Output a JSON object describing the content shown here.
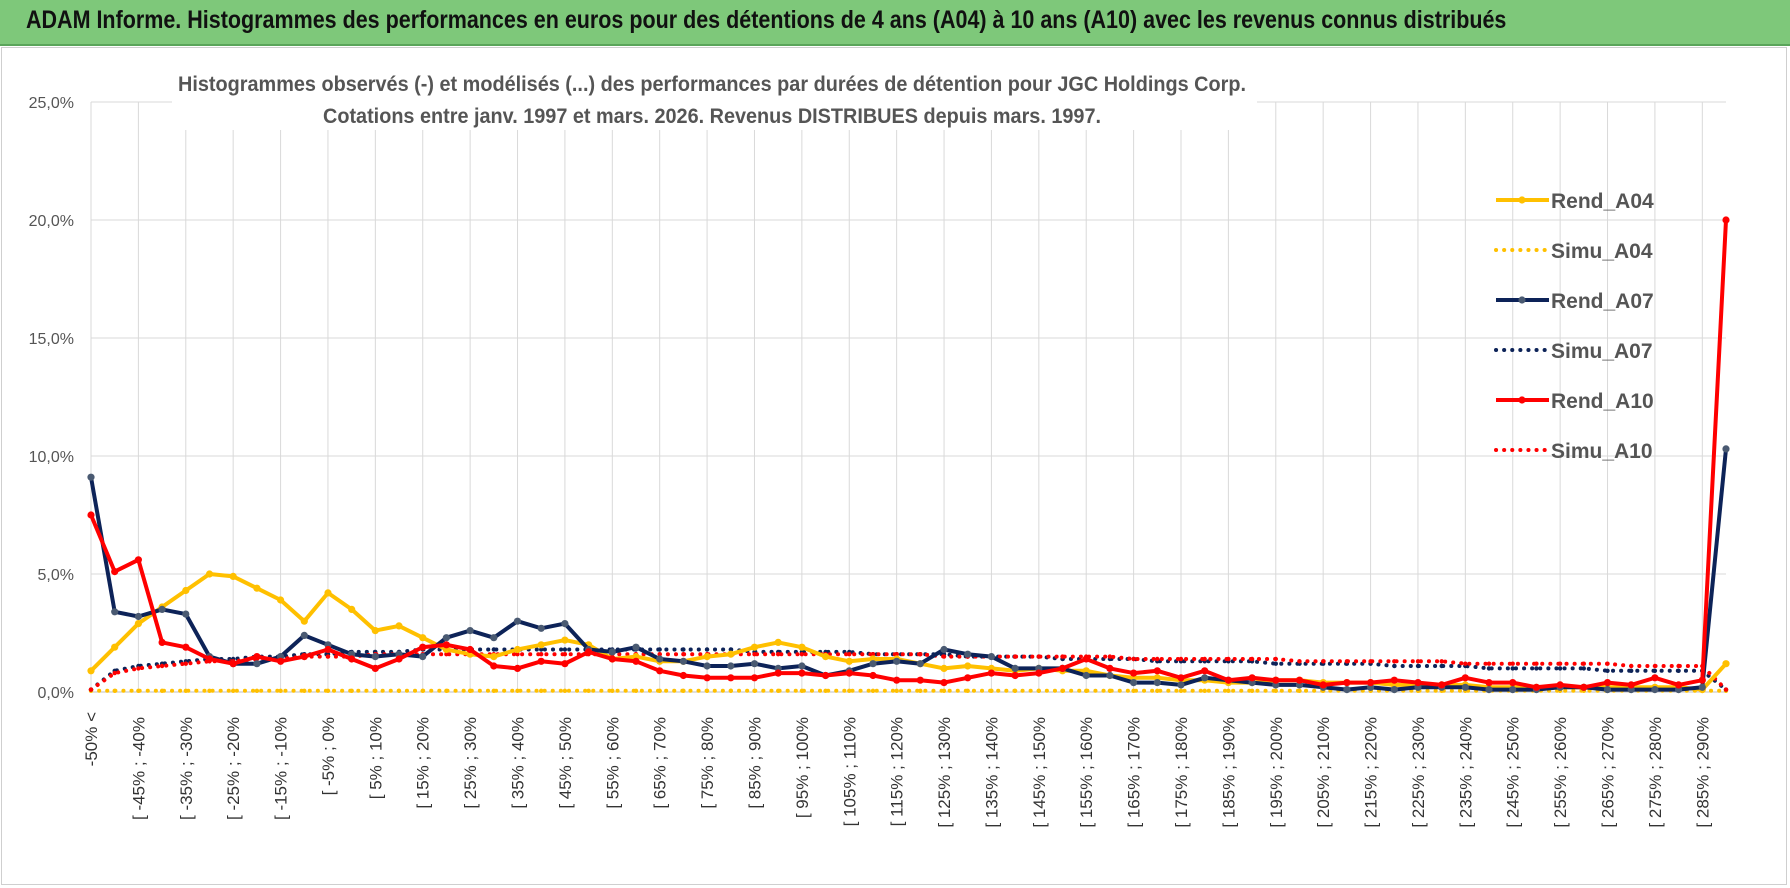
{
  "header": {
    "title": "ADAM Informe. Histogrammes des performances en euros pour des détentions de 4 ans (A04) à 10 ans (A10) avec les revenus connus distribués"
  },
  "colors": {
    "banner": "#7ec87a",
    "A04": "#ffc000",
    "A07": "#0d2358",
    "A10": "#ff0000",
    "grid": "#d9d9d9"
  },
  "chart_data": {
    "type": "line",
    "title_line1": "Histogrammes observés (-) et modélisés (...) des performances par durées de détention pour JGC Holdings Corp.",
    "title_line2": "Cotations entre janv. 1997 et mars. 2026.  Revenus DISTRIBUES depuis mars. 1997.",
    "ylim": [
      0,
      25
    ],
    "yticks": [
      "0,0%",
      "5,0%",
      "10,0%",
      "15,0%",
      "20,0%",
      "25,0%"
    ],
    "grid": true,
    "legend_position": "right",
    "x_label_list": [
      "-50% <",
      "[ -45% ; -40%",
      "[ -35% ; -30%",
      "[ -25% ; -20%",
      "[ -15% ; -10%",
      "[ -5% ; 0%",
      "[ 5% ; 10%",
      "[ 15% ; 20%",
      "[ 25% ; 30%",
      "[ 35% ; 40%",
      "[ 45% ; 50%",
      "[ 55% ; 60%",
      "[ 65% ; 70%",
      "[ 75% ; 80%",
      "[ 85% ; 90%",
      "[ 95% ; 100%",
      "[ 105% ; 110%",
      "[ 115% ; 120%",
      "[ 125% ; 130%",
      "[ 135% ; 140%",
      "[ 145% ; 150%",
      "[ 155% ; 160%",
      "[ 165% ; 170%",
      "[ 175% ; 180%",
      "[ 185% ; 190%",
      "[ 195% ; 200%",
      "[ 205% ; 210%",
      "[ 215% ; 220%",
      "[ 225% ; 230%",
      "[ 235% ; 240%",
      "[ 245% ; 250%",
      "[ 255% ; 260%",
      "[ 265% ; 270%",
      "[ 275% ; 280%",
      "[ 285% ; 290%"
    ],
    "n_categories": 70,
    "series": [
      {
        "name": "Rend_A04",
        "style": "solid",
        "color": "#ffc000",
        "values": [
          0.9,
          1.9,
          2.9,
          3.6,
          4.3,
          5.0,
          4.9,
          4.4,
          3.9,
          3.0,
          4.2,
          3.5,
          2.6,
          2.8,
          2.3,
          1.8,
          1.6,
          1.5,
          1.8,
          2.0,
          2.2,
          2.0,
          1.4,
          1.5,
          1.3,
          1.3,
          1.5,
          1.6,
          1.9,
          2.1,
          1.9,
          1.5,
          1.3,
          1.4,
          1.4,
          1.2,
          1.0,
          1.1,
          1.0,
          0.9,
          1.0,
          0.9,
          0.9,
          0.7,
          0.6,
          0.6,
          0.5,
          0.5,
          0.4,
          0.4,
          0.5,
          0.5,
          0.4,
          0.4,
          0.4,
          0.3,
          0.3,
          0.3,
          0.3,
          0.2,
          0.2,
          0.2,
          0.2,
          0.2,
          0.2,
          0.2,
          0.2,
          0.2,
          0.1,
          1.2
        ]
      },
      {
        "name": "Simu_A04",
        "style": "dotted",
        "color": "#ffc000",
        "values": [
          0.05,
          0.05,
          0.05,
          0.05,
          0.05,
          0.05,
          0.05,
          0.05,
          0.05,
          0.05,
          0.05,
          0.05,
          0.05,
          0.05,
          0.05,
          0.05,
          0.05,
          0.05,
          0.05,
          0.05,
          0.05,
          0.05,
          0.05,
          0.05,
          0.05,
          0.05,
          0.05,
          0.05,
          0.05,
          0.05,
          0.05,
          0.05,
          0.05,
          0.05,
          0.05,
          0.05,
          0.05,
          0.05,
          0.05,
          0.05,
          0.05,
          0.05,
          0.05,
          0.05,
          0.05,
          0.05,
          0.05,
          0.05,
          0.05,
          0.05,
          0.05,
          0.05,
          0.05,
          0.05,
          0.05,
          0.05,
          0.05,
          0.05,
          0.05,
          0.05,
          0.05,
          0.05,
          0.05,
          0.05,
          0.05,
          0.05,
          0.05,
          0.05,
          0.05,
          0.05
        ]
      },
      {
        "name": "Rend_A07",
        "style": "solid",
        "color": "#0d2358",
        "values": [
          9.1,
          3.4,
          3.2,
          3.5,
          3.3,
          1.5,
          1.2,
          1.2,
          1.5,
          2.4,
          2.0,
          1.6,
          1.5,
          1.6,
          1.5,
          2.3,
          2.6,
          2.3,
          3.0,
          2.7,
          2.9,
          1.8,
          1.7,
          1.9,
          1.4,
          1.3,
          1.1,
          1.1,
          1.2,
          1.0,
          1.1,
          0.7,
          0.9,
          1.2,
          1.3,
          1.2,
          1.8,
          1.6,
          1.5,
          1.0,
          1.0,
          1.0,
          0.7,
          0.7,
          0.4,
          0.4,
          0.3,
          0.6,
          0.5,
          0.4,
          0.3,
          0.3,
          0.2,
          0.1,
          0.2,
          0.1,
          0.2,
          0.2,
          0.2,
          0.1,
          0.1,
          0.1,
          0.2,
          0.2,
          0.1,
          0.1,
          0.1,
          0.1,
          0.2,
          10.3
        ]
      },
      {
        "name": "Simu_A07",
        "style": "dotted",
        "color": "#0d2358",
        "values": [
          0.1,
          0.9,
          1.1,
          1.2,
          1.3,
          1.4,
          1.4,
          1.5,
          1.5,
          1.6,
          1.6,
          1.7,
          1.7,
          1.7,
          1.8,
          1.8,
          1.8,
          1.8,
          1.8,
          1.8,
          1.8,
          1.8,
          1.8,
          1.8,
          1.8,
          1.8,
          1.8,
          1.8,
          1.7,
          1.7,
          1.7,
          1.7,
          1.7,
          1.6,
          1.6,
          1.6,
          1.6,
          1.5,
          1.5,
          1.5,
          1.5,
          1.4,
          1.4,
          1.4,
          1.4,
          1.3,
          1.3,
          1.3,
          1.3,
          1.3,
          1.2,
          1.2,
          1.2,
          1.2,
          1.2,
          1.1,
          1.1,
          1.1,
          1.1,
          1.0,
          1.0,
          1.0,
          1.0,
          1.0,
          0.9,
          0.9,
          0.9,
          0.9,
          0.9,
          0.1
        ]
      },
      {
        "name": "Rend_A10",
        "style": "solid",
        "color": "#ff0000",
        "values": [
          7.5,
          5.1,
          5.6,
          2.1,
          1.9,
          1.4,
          1.2,
          1.5,
          1.3,
          1.5,
          1.8,
          1.4,
          1.0,
          1.4,
          1.9,
          2.0,
          1.8,
          1.1,
          1.0,
          1.3,
          1.2,
          1.7,
          1.4,
          1.3,
          0.9,
          0.7,
          0.6,
          0.6,
          0.6,
          0.8,
          0.8,
          0.7,
          0.8,
          0.7,
          0.5,
          0.5,
          0.4,
          0.6,
          0.8,
          0.7,
          0.8,
          1.0,
          1.4,
          1.0,
          0.8,
          0.9,
          0.6,
          0.9,
          0.5,
          0.6,
          0.5,
          0.5,
          0.3,
          0.4,
          0.4,
          0.5,
          0.4,
          0.3,
          0.6,
          0.4,
          0.4,
          0.2,
          0.3,
          0.2,
          0.4,
          0.3,
          0.6,
          0.3,
          0.5,
          20.0
        ]
      },
      {
        "name": "Simu_A10",
        "style": "dotted",
        "color": "#ff0000",
        "values": [
          0.1,
          0.8,
          1.0,
          1.1,
          1.2,
          1.3,
          1.3,
          1.4,
          1.4,
          1.5,
          1.5,
          1.5,
          1.6,
          1.6,
          1.6,
          1.6,
          1.6,
          1.6,
          1.6,
          1.6,
          1.6,
          1.6,
          1.6,
          1.6,
          1.6,
          1.6,
          1.6,
          1.6,
          1.6,
          1.6,
          1.6,
          1.6,
          1.6,
          1.6,
          1.6,
          1.6,
          1.5,
          1.5,
          1.5,
          1.5,
          1.5,
          1.5,
          1.5,
          1.5,
          1.4,
          1.4,
          1.4,
          1.4,
          1.4,
          1.4,
          1.4,
          1.3,
          1.3,
          1.3,
          1.3,
          1.3,
          1.3,
          1.3,
          1.2,
          1.2,
          1.2,
          1.2,
          1.2,
          1.2,
          1.2,
          1.1,
          1.1,
          1.1,
          1.1,
          0.1
        ]
      }
    ]
  }
}
